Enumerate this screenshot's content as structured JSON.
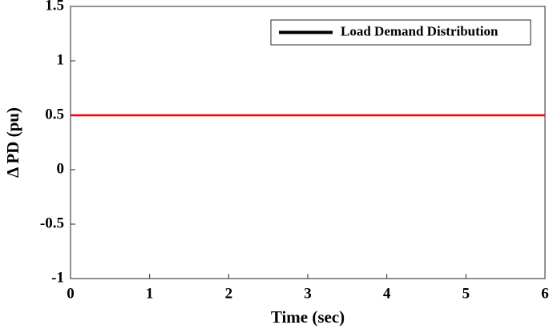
{
  "chart_data": {
    "type": "line",
    "x_label": "Time (sec)",
    "y_label": "Δ PD (pu)",
    "x": [
      0,
      6
    ],
    "series": [
      {
        "name": "Load Demand Distribution",
        "color": "#ff0000",
        "values": [
          0.5,
          0.5
        ]
      }
    ],
    "legend_color": "#000000",
    "legend": "upper right",
    "xlim": [
      0,
      6
    ],
    "xticks": [
      0,
      1,
      2,
      3,
      4,
      5,
      6
    ],
    "ylim": [
      -1,
      1.5
    ],
    "yticks": [
      -1,
      -0.5,
      0,
      0.5,
      1,
      1.5
    ],
    "grid": false
  }
}
